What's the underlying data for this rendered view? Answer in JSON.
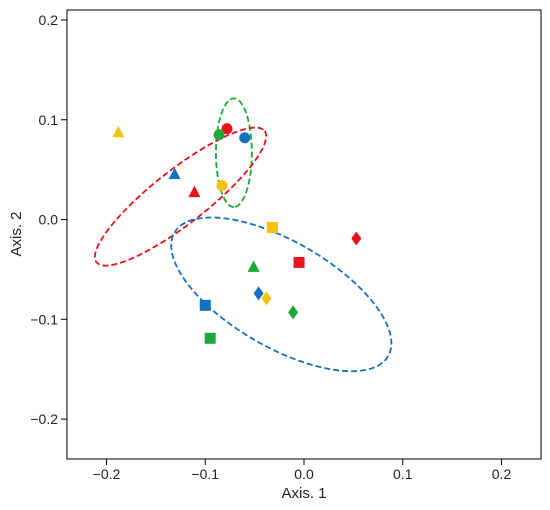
{
  "chart_data": {
    "type": "scatter",
    "title": "",
    "xlabel": "Axis. 1",
    "ylabel": "Axis. 2",
    "xlim": [
      -0.24,
      0.24
    ],
    "ylim": [
      -0.24,
      0.21
    ],
    "x_ticks": [
      -0.2,
      -0.1,
      0.0,
      0.1,
      0.2
    ],
    "x_tick_labels": [
      "−0.2",
      "−0.1",
      "0.0",
      "0.1",
      "0.2"
    ],
    "y_ticks": [
      -0.2,
      -0.1,
      0.0,
      0.1,
      0.2
    ],
    "y_tick_labels": [
      "−0.2",
      "−0.1",
      "0.0",
      "0.1",
      "0.2"
    ],
    "grid": false,
    "colors": {
      "red": "#e8121a",
      "green": "#1aa838",
      "blue": "#1670c0",
      "yellow": "#f7c20e"
    },
    "groups": [
      {
        "shape": "circle",
        "color": "green",
        "points": [
          {
            "x": -0.078,
            "y": 0.091,
            "color": "red"
          },
          {
            "x": -0.086,
            "y": 0.085,
            "color": "green"
          },
          {
            "x": -0.06,
            "y": 0.082,
            "color": "blue"
          },
          {
            "x": -0.083,
            "y": 0.034,
            "color": "yellow"
          }
        ]
      },
      {
        "shape": "triangle",
        "color": "red",
        "points": [
          {
            "x": -0.188,
            "y": 0.087,
            "color": "yellow"
          },
          {
            "x": -0.131,
            "y": 0.045,
            "color": "blue"
          },
          {
            "x": -0.111,
            "y": 0.027,
            "color": "red"
          },
          {
            "x": -0.051,
            "y": -0.048,
            "color": "green"
          }
        ]
      },
      {
        "shape": "square",
        "color": "blue",
        "points": [
          {
            "x": -0.032,
            "y": -0.008,
            "color": "yellow"
          },
          {
            "x": -0.005,
            "y": -0.043,
            "color": "red"
          },
          {
            "x": -0.1,
            "y": -0.086,
            "color": "blue"
          },
          {
            "x": -0.095,
            "y": -0.119,
            "color": "green"
          }
        ]
      },
      {
        "shape": "diamond",
        "color": "blue",
        "points": [
          {
            "x": 0.053,
            "y": -0.019,
            "color": "red"
          },
          {
            "x": -0.046,
            "y": -0.074,
            "color": "blue"
          },
          {
            "x": -0.038,
            "y": -0.079,
            "color": "yellow"
          },
          {
            "x": -0.011,
            "y": -0.093,
            "color": "green"
          }
        ]
      }
    ],
    "ellipses": [
      {
        "color": "green",
        "cx": -0.071,
        "cy": 0.067,
        "rx": 0.055,
        "ry": 0.018,
        "angle_deg": 90
      },
      {
        "color": "red",
        "cx": -0.125,
        "cy": 0.023,
        "rx": 0.108,
        "ry": 0.027,
        "angle_deg": -38
      },
      {
        "color": "blue",
        "cx": -0.023,
        "cy": -0.075,
        "rx": 0.125,
        "ry": 0.053,
        "angle_deg": 30
      }
    ]
  }
}
